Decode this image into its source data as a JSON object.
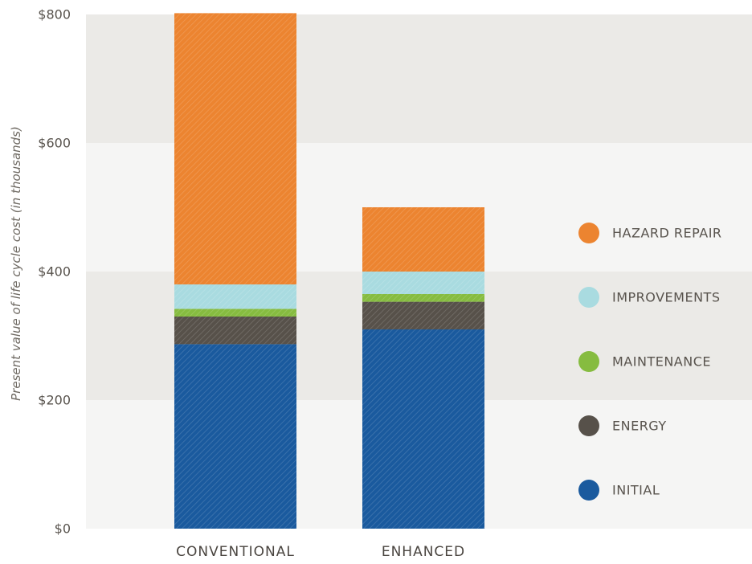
{
  "chart_data": {
    "type": "bar",
    "stacked": true,
    "categories": [
      "CONVENTIONAL",
      "ENHANCED"
    ],
    "ylabel": "Present value of life cycle cost (in thousands)",
    "ylim": [
      0,
      800
    ],
    "yticks": [
      0,
      200,
      400,
      600,
      800
    ],
    "ytick_labels": [
      "$0",
      "$200",
      "$400",
      "$600",
      "$800"
    ],
    "series": [
      {
        "name": "INITIAL",
        "color": "#1a5a9e",
        "values": [
          287,
          310
        ]
      },
      {
        "name": "ENERGY",
        "color": "#57514a",
        "values": [
          43,
          43
        ]
      },
      {
        "name": "MAINTENANCE",
        "color": "#86bc40",
        "values": [
          12,
          12
        ]
      },
      {
        "name": "IMPROVEMENTS",
        "color": "#a9dbe0",
        "values": [
          38,
          35
        ]
      },
      {
        "name": "HAZARD REPAIR",
        "color": "#ec8430",
        "values": [
          422,
          100
        ]
      }
    ],
    "legend_position": "right",
    "legend_order": [
      "HAZARD REPAIR",
      "IMPROVEMENTS",
      "MAINTENANCE",
      "ENERGY",
      "INITIAL"
    ],
    "background_bands": [
      "#f5f5f4",
      "#ebeae7"
    ],
    "grid": false
  }
}
